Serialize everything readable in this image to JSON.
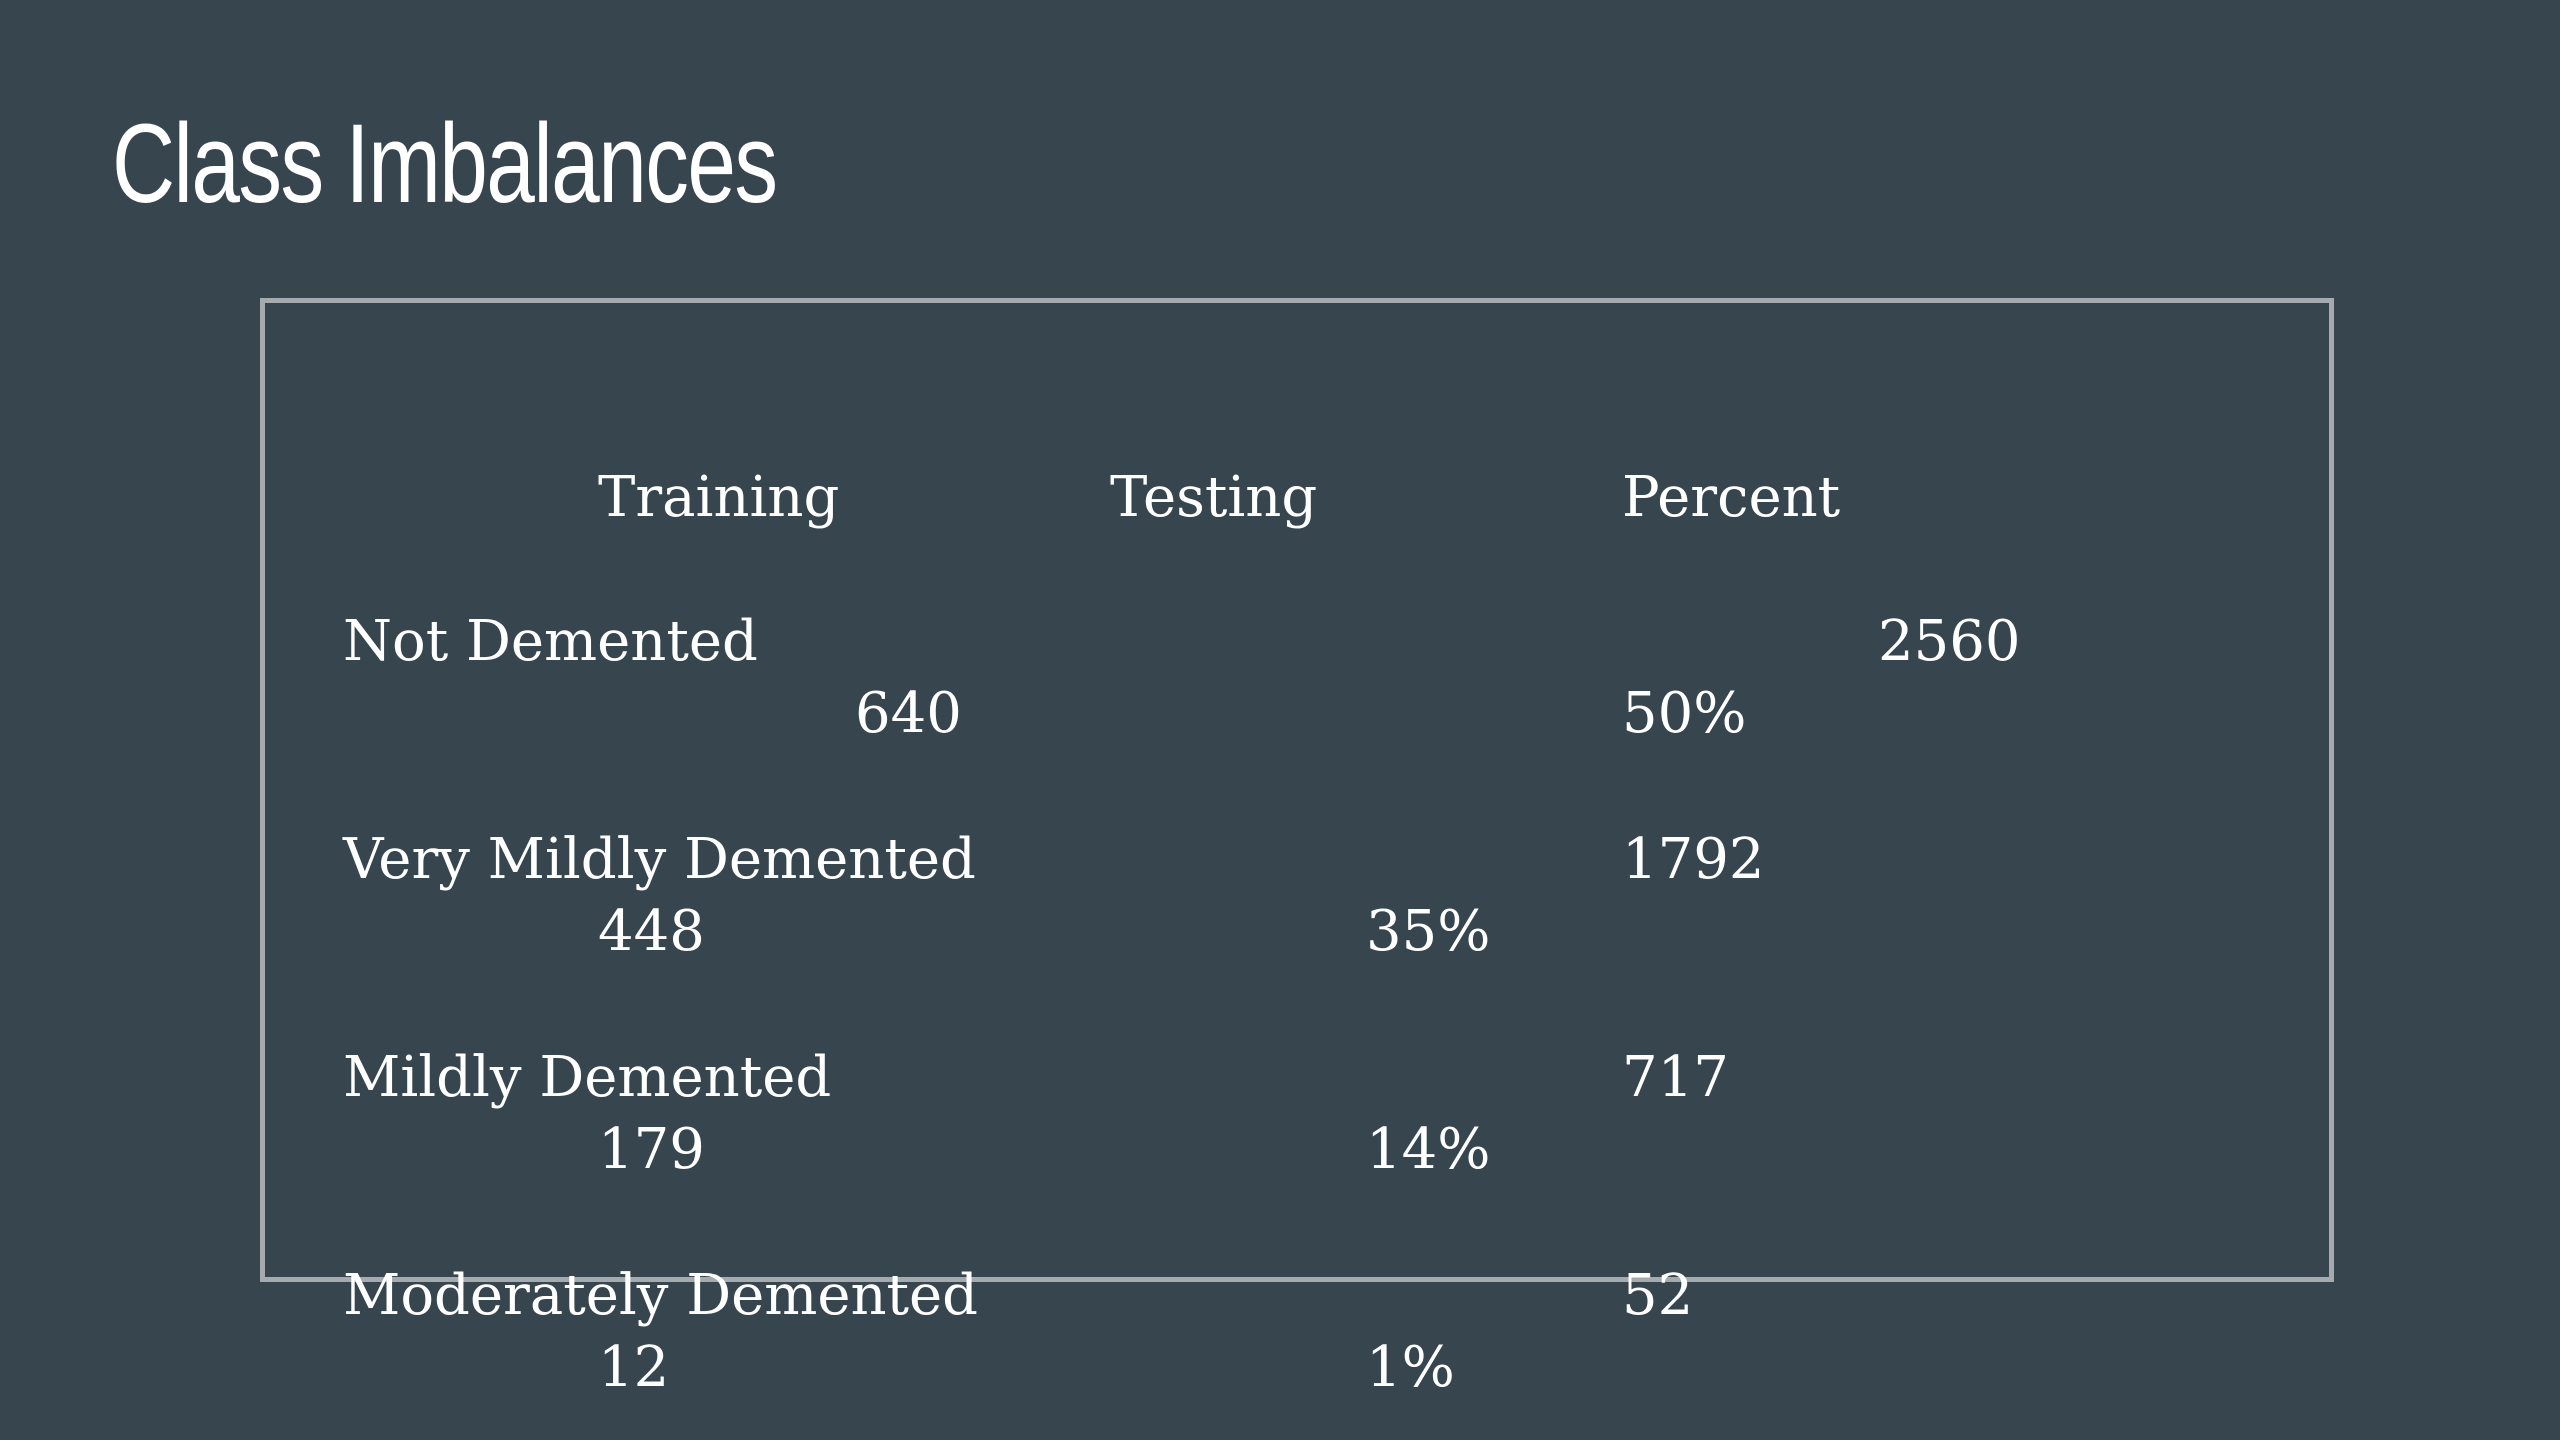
{
  "slide": {
    "title": "Class Imbalances"
  },
  "table": {
    "headers": {
      "training": "Training",
      "testing": "Testing",
      "percent": "Percent"
    },
    "rows": [
      {
        "label": "Not Demented",
        "training": "2560",
        "testing": "640",
        "percent": "50%"
      },
      {
        "label": "Very Mildly Demented",
        "training": "1792",
        "testing": "448",
        "percent": "35%"
      },
      {
        "label": "Mildly Demented",
        "training": "717",
        "testing": "179",
        "percent": "14%"
      },
      {
        "label": "Moderately Demented",
        "training": "52",
        "testing": "12",
        "percent": "1%"
      }
    ]
  }
}
